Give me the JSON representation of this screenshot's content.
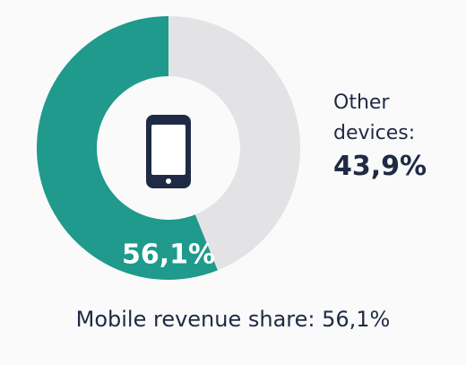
{
  "chart_data": {
    "type": "donut",
    "title": "Mobile revenue share: 56,1%",
    "categories": [
      null,
      "Other devices:"
    ],
    "values": [
      56.1,
      43.9
    ],
    "value_labels": [
      "56,1%",
      "43,9%"
    ],
    "colors": [
      "#1f9a8c",
      "#e3e3e6"
    ]
  }
}
